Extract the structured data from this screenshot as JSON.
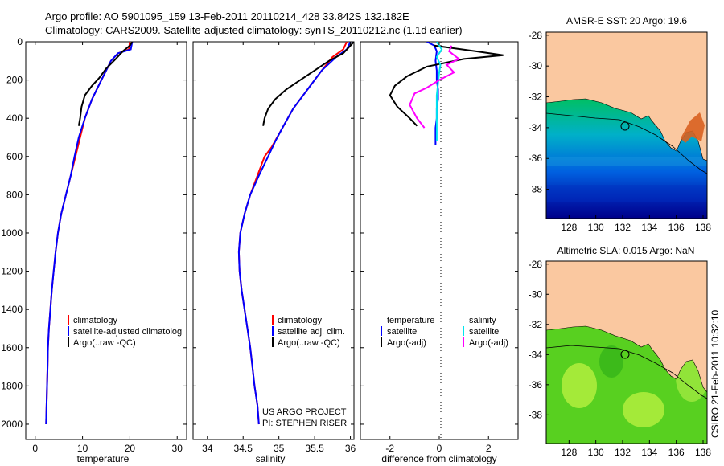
{
  "header": {
    "line1": "Argo profile: AO 5901095_159 13-Feb-2011 20110214_428 33.842S 132.182E",
    "line2": "Climatology: CARS2009. Satellite-adjusted climatology: synTS_20110212.nc (1.1d earlier)"
  },
  "colors": {
    "climatology": "#ff0000",
    "satellite": "#0000ff",
    "argo": "#000000",
    "sal_satellite": "#00e5ee",
    "sal_argo": "#ff00ff",
    "land": "#fac8a0"
  },
  "chart_data": [
    {
      "type": "line",
      "id": "temperature",
      "xlabel": "temperature",
      "ylabel": "",
      "xlim": [
        -2,
        32
      ],
      "ylim": [
        2080,
        0
      ],
      "xticks": [
        0,
        10,
        20,
        30
      ],
      "yticks": [
        0,
        200,
        400,
        600,
        800,
        1000,
        1200,
        1400,
        1600,
        1800,
        2000
      ],
      "legend": [
        "climatology",
        "satellite-adjusted climatolog",
        "Argo(..raw -QC)"
      ],
      "series": [
        {
          "name": "climatology",
          "color": "#ff0000",
          "x": [
            20.0,
            19.8,
            17.5,
            16.0,
            15.0,
            14.0,
            13.0,
            12.0,
            10.5,
            9.5,
            8.5,
            7.5,
            6.5,
            5.5,
            4.8,
            4.3,
            3.9,
            3.5,
            3.2,
            2.9,
            2.7,
            2.6,
            2.5,
            2.4,
            2.3
          ],
          "y": [
            0,
            40,
            60,
            100,
            150,
            200,
            250,
            300,
            400,
            500,
            600,
            700,
            800,
            900,
            1000,
            1100,
            1200,
            1300,
            1400,
            1500,
            1600,
            1700,
            1800,
            1900,
            2000
          ]
        },
        {
          "name": "satellite-adjusted climatolog",
          "color": "#0000ff",
          "x": [
            20.5,
            20.2,
            17.5,
            16.0,
            15.0,
            14.0,
            13.0,
            12.0,
            10.5,
            9.2,
            8.3,
            7.5,
            6.5,
            5.5,
            4.8,
            4.3,
            3.9,
            3.5,
            3.2,
            2.9,
            2.7,
            2.6,
            2.5,
            2.4,
            2.3
          ],
          "y": [
            0,
            40,
            60,
            100,
            150,
            200,
            250,
            300,
            400,
            500,
            600,
            700,
            800,
            900,
            1000,
            1100,
            1200,
            1300,
            1400,
            1500,
            1600,
            1700,
            1800,
            1900,
            2000
          ]
        },
        {
          "name": "Argo(..raw -QC)",
          "color": "#000000",
          "x": [
            20.5,
            20.0,
            18.5,
            17.0,
            15.0,
            13.5,
            12.0,
            10.5,
            9.8,
            9.5,
            9.2
          ],
          "y": [
            0,
            20,
            50,
            90,
            140,
            190,
            230,
            280,
            340,
            400,
            440
          ]
        }
      ]
    },
    {
      "type": "line",
      "id": "salinity",
      "xlabel": "salinity",
      "ylabel": "",
      "xlim": [
        33.8,
        36.05
      ],
      "ylim": [
        2080,
        0
      ],
      "xticks": [
        34,
        34.5,
        35,
        35.5,
        36
      ],
      "legend": [
        "climatology",
        "satellite adj. clim.",
        "Argo(..raw -QC)"
      ],
      "annotations": [
        "US ARGO PROJECT",
        "PI: STEPHEN RISER"
      ],
      "series": [
        {
          "name": "climatology",
          "color": "#ff0000",
          "x": [
            35.95,
            35.9,
            35.75,
            35.6,
            35.4,
            35.2,
            35.05,
            34.9,
            34.8,
            34.7,
            34.6,
            34.52,
            34.46,
            34.44,
            34.45,
            34.48,
            34.52,
            34.56,
            34.6,
            34.63,
            34.66,
            34.68,
            34.7,
            34.71,
            34.72
          ],
          "y": [
            0,
            40,
            80,
            150,
            250,
            350,
            450,
            550,
            600,
            700,
            800,
            900,
            1000,
            1100,
            1200,
            1300,
            1400,
            1500,
            1600,
            1700,
            1800,
            1850,
            1900,
            1950,
            2000
          ]
        },
        {
          "name": "satellite adj. clim.",
          "color": "#0000ff",
          "x": [
            36.0,
            35.95,
            35.8,
            35.6,
            35.4,
            35.2,
            35.05,
            34.95,
            34.85,
            34.72,
            34.6,
            34.52,
            34.46,
            34.44,
            34.45,
            34.48,
            34.52,
            34.56,
            34.6,
            34.63,
            34.66,
            34.68,
            34.7,
            34.71,
            34.72
          ],
          "y": [
            0,
            40,
            80,
            150,
            250,
            350,
            450,
            520,
            600,
            700,
            800,
            900,
            1000,
            1100,
            1200,
            1300,
            1400,
            1500,
            1600,
            1700,
            1800,
            1850,
            1900,
            1950,
            2000
          ]
        },
        {
          "name": "Argo(..raw -QC)",
          "color": "#000000",
          "x": [
            36.05,
            36.0,
            35.9,
            35.7,
            35.5,
            35.3,
            35.1,
            34.95,
            34.85,
            34.8,
            34.78
          ],
          "y": [
            0,
            20,
            60,
            100,
            150,
            200,
            250,
            300,
            350,
            400,
            440
          ]
        }
      ]
    },
    {
      "type": "line",
      "id": "difference",
      "xlabel": "difference from climatology",
      "ylabel": "",
      "xlim": [
        -3.2,
        3.2
      ],
      "ylim": [
        2080,
        0
      ],
      "xticks": [
        -2,
        0,
        2
      ],
      "legend_groups": {
        "temperature": [
          "satellite",
          "Argo(-adj)"
        ],
        "salinity": [
          "satellite",
          "Argo(-adj)"
        ]
      },
      "legend_headers": [
        "temperature",
        "salinity"
      ],
      "series": [
        {
          "name": "satellite",
          "group": "temperature",
          "color": "#0000ff",
          "x": [
            -0.5,
            -0.2,
            -0.1,
            -0.15,
            -0.1,
            -0.1,
            -0.05,
            -0.05,
            -0.1,
            -0.1,
            -0.15,
            -0.15
          ],
          "y": [
            0,
            20,
            50,
            100,
            150,
            200,
            250,
            300,
            350,
            400,
            450,
            540
          ]
        },
        {
          "name": "Argo(-adj)",
          "group": "temperature",
          "color": "#000000",
          "x": [
            -0.2,
            1.5,
            2.6,
            1.0,
            -0.5,
            -1.3,
            -1.8,
            -2.0,
            -1.7,
            -1.2,
            -0.9
          ],
          "y": [
            20,
            50,
            70,
            90,
            130,
            180,
            230,
            280,
            340,
            400,
            440
          ]
        },
        {
          "name": "satellite",
          "group": "salinity",
          "color": "#00e5ee",
          "x": [
            -0.1,
            0.1,
            -0.1,
            0.05,
            0.0,
            -0.05,
            -0.1,
            -0.1,
            -0.1,
            -0.1,
            -0.1
          ],
          "y": [
            0,
            40,
            80,
            120,
            160,
            220,
            280,
            340,
            400,
            460,
            520
          ]
        },
        {
          "name": "Argo(-adj)",
          "group": "salinity",
          "color": "#ff00ff",
          "x": [
            0.5,
            0.4,
            0.8,
            0.3,
            0.6,
            0.0,
            -0.5,
            -1.0,
            -1.2,
            -0.9,
            -0.6
          ],
          "y": [
            20,
            50,
            90,
            120,
            160,
            200,
            240,
            270,
            330,
            400,
            450
          ]
        }
      ]
    },
    {
      "type": "heatmap",
      "id": "sst-map",
      "title": "AMSR-E SST: 20 Argo: 19.6",
      "xlim": [
        126.3,
        138.3
      ],
      "ylim": [
        -39.9,
        -27.8
      ],
      "xticks": [
        128,
        130,
        132,
        134,
        136,
        138
      ],
      "yticks": [
        -28,
        -30,
        -32,
        -34,
        -36,
        -38
      ],
      "float_position": {
        "lon": 132.182,
        "lat": -33.842
      }
    },
    {
      "type": "heatmap",
      "id": "sla-map",
      "title": "Altimetric SLA: 0.015 Argo: NaN",
      "xlim": [
        126.3,
        138.3
      ],
      "ylim": [
        -39.9,
        -27.8
      ],
      "xticks": [
        128,
        130,
        132,
        134,
        136,
        138
      ],
      "yticks": [
        -28,
        -30,
        -32,
        -34,
        -36,
        -38
      ],
      "float_position": {
        "lon": 132.182,
        "lat": -33.842
      }
    }
  ],
  "footer_note": "CSIRO 21-Feb-2011 10:32:10"
}
